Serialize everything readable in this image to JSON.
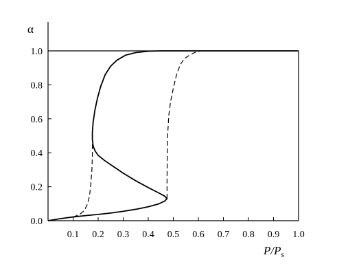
{
  "chart_data": {
    "type": "line",
    "title": "",
    "xlabel": "P/Ps",
    "xlabel_parts": {
      "main": "P/P",
      "subscript": "s"
    },
    "ylabel": "α",
    "xlim": [
      0.0,
      1.0
    ],
    "ylim": [
      0.0,
      1.0
    ],
    "x_ticks": [
      "0.1",
      "0.2",
      "0.3",
      "0.4",
      "0.5",
      "0.6",
      "0.7",
      "0.8",
      "0.9",
      "1.0"
    ],
    "y_ticks": [
      "0.0",
      "0.2",
      "0.4",
      "0.6",
      "0.8",
      "1.0"
    ],
    "grid": false,
    "legend": "none",
    "series": [
      {
        "style": "solid",
        "points": [
          [
            0.0,
            0.0
          ],
          [
            0.05,
            0.012
          ],
          [
            0.1,
            0.022
          ],
          [
            0.15,
            0.03
          ],
          [
            0.2,
            0.037
          ],
          [
            0.25,
            0.045
          ],
          [
            0.3,
            0.055
          ],
          [
            0.35,
            0.067
          ],
          [
            0.4,
            0.082
          ],
          [
            0.44,
            0.098
          ],
          [
            0.465,
            0.115
          ],
          [
            0.475,
            0.13
          ],
          [
            0.465,
            0.145
          ],
          [
            0.44,
            0.165
          ],
          [
            0.4,
            0.195
          ],
          [
            0.35,
            0.235
          ],
          [
            0.3,
            0.28
          ],
          [
            0.26,
            0.32
          ],
          [
            0.225,
            0.355
          ],
          [
            0.2,
            0.385
          ],
          [
            0.188,
            0.41
          ],
          [
            0.18,
            0.44
          ],
          [
            0.177,
            0.48
          ],
          [
            0.177,
            0.52
          ],
          [
            0.18,
            0.58
          ],
          [
            0.187,
            0.65
          ],
          [
            0.197,
            0.72
          ],
          [
            0.21,
            0.79
          ],
          [
            0.228,
            0.86
          ],
          [
            0.25,
            0.91
          ],
          [
            0.275,
            0.945
          ],
          [
            0.31,
            0.975
          ],
          [
            0.35,
            0.99
          ],
          [
            0.4,
            0.998
          ],
          [
            0.45,
            1.0
          ],
          [
            0.55,
            1.0
          ],
          [
            0.7,
            1.0
          ],
          [
            0.85,
            1.0
          ],
          [
            1.0,
            1.0
          ]
        ]
      },
      {
        "style": "dashed",
        "points": [
          [
            0.1,
            0.022
          ],
          [
            0.125,
            0.035
          ],
          [
            0.145,
            0.06
          ],
          [
            0.158,
            0.1
          ],
          [
            0.166,
            0.15
          ],
          [
            0.171,
            0.22
          ],
          [
            0.175,
            0.3
          ],
          [
            0.177,
            0.38
          ],
          [
            0.177,
            0.48
          ]
        ]
      },
      {
        "style": "dashed",
        "points": [
          [
            0.475,
            0.13
          ],
          [
            0.475,
            0.25
          ],
          [
            0.476,
            0.4
          ],
          [
            0.478,
            0.52
          ],
          [
            0.482,
            0.62
          ],
          [
            0.489,
            0.7
          ],
          [
            0.5,
            0.78
          ],
          [
            0.513,
            0.86
          ],
          [
            0.528,
            0.92
          ],
          [
            0.545,
            0.955
          ],
          [
            0.565,
            0.975
          ],
          [
            0.585,
            0.99
          ],
          [
            0.61,
            1.0
          ]
        ]
      }
    ]
  }
}
